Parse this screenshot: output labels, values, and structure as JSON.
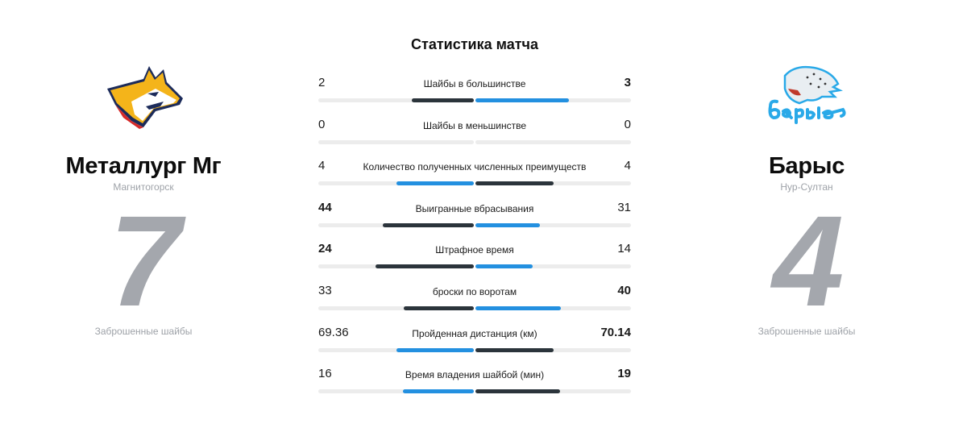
{
  "title": "Статистика матча",
  "colors": {
    "dark": "#2b343b",
    "blue": "#2390e0",
    "track": "#ececec",
    "score_gray": "#a4a7ad",
    "muted_text": "#9ea2a8"
  },
  "home": {
    "name": "Металлург Мг",
    "city": "Магнитогорск",
    "score": "7",
    "score_label": "Заброшенные шайбы",
    "logo": "metallurg-fox-logo"
  },
  "away": {
    "name": "Барыс",
    "city": "Нур-Султан",
    "score": "4",
    "score_label": "Заброшенные шайбы",
    "logo": "barys-snow-leopard-logo"
  },
  "stats": [
    {
      "label": "Шайбы в большинстве",
      "home": "2",
      "away": "3",
      "home_num": 2,
      "away_num": 3,
      "home_bold": false,
      "away_bold": true,
      "home_color": "dark",
      "away_color": "blue"
    },
    {
      "label": "Шайбы в меньшинстве",
      "home": "0",
      "away": "0",
      "home_num": 0,
      "away_num": 0,
      "home_bold": false,
      "away_bold": false,
      "home_color": "dark",
      "away_color": "blue"
    },
    {
      "label": "Количество полученных численных преимуществ",
      "home": "4",
      "away": "4",
      "home_num": 4,
      "away_num": 4,
      "home_bold": false,
      "away_bold": false,
      "home_color": "blue",
      "away_color": "dark"
    },
    {
      "label": "Выигранные вбрасывания",
      "home": "44",
      "away": "31",
      "home_num": 44,
      "away_num": 31,
      "home_bold": true,
      "away_bold": false,
      "home_color": "dark",
      "away_color": "blue"
    },
    {
      "label": "Штрафное время",
      "home": "24",
      "away": "14",
      "home_num": 24,
      "away_num": 14,
      "home_bold": true,
      "away_bold": false,
      "home_color": "dark",
      "away_color": "blue"
    },
    {
      "label": "броски по воротам",
      "home": "33",
      "away": "40",
      "home_num": 33,
      "away_num": 40,
      "home_bold": false,
      "away_bold": true,
      "home_color": "dark",
      "away_color": "blue"
    },
    {
      "label": "Пройденная дистанция (км)",
      "home": "69.36",
      "away": "70.14",
      "home_num": 69.36,
      "away_num": 70.14,
      "home_bold": false,
      "away_bold": true,
      "home_color": "blue",
      "away_color": "dark"
    },
    {
      "label": "Время владения шайбой (мин)",
      "home": "16",
      "away": "19",
      "home_num": 16,
      "away_num": 19,
      "home_bold": false,
      "away_bold": true,
      "home_color": "blue",
      "away_color": "dark"
    }
  ]
}
